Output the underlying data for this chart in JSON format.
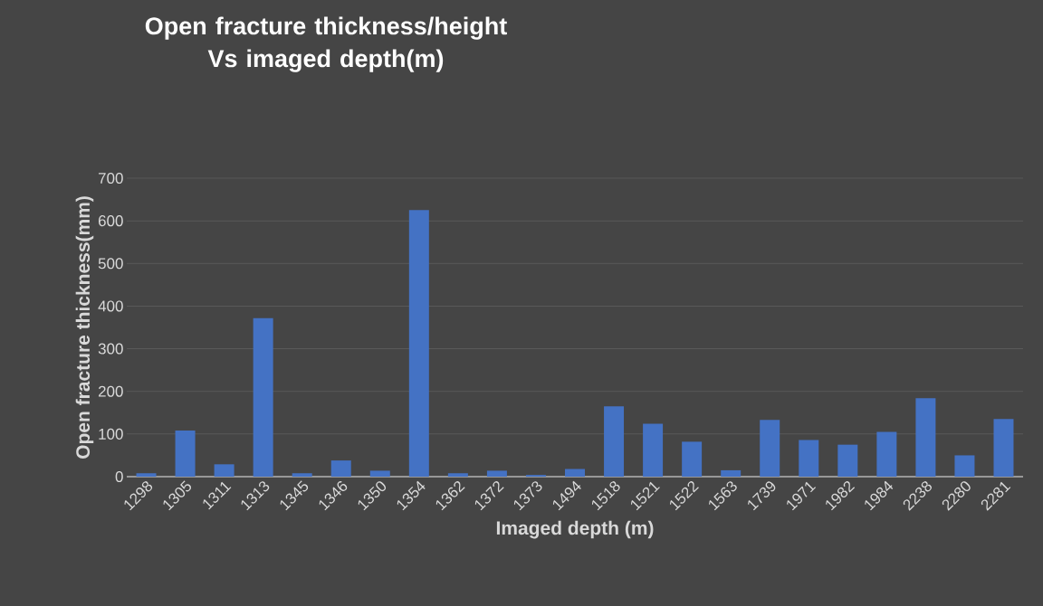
{
  "chart_data": {
    "type": "bar",
    "title": "Open fracture thickness/height Vs imaged depth(m)",
    "xlabel": "Imaged depth (m)",
    "ylabel": "Open fracture thickness(mm)",
    "categories": [
      "1298",
      "1305",
      "1311",
      "1313",
      "1345",
      "1346",
      "1350",
      "1354",
      "1362",
      "1372",
      "1373",
      "1494",
      "1518",
      "1521",
      "1522",
      "1563",
      "1739",
      "1971",
      "1982",
      "1984",
      "2238",
      "2280",
      "2281"
    ],
    "values": [
      8,
      108,
      29,
      372,
      8,
      38,
      14,
      625,
      8,
      14,
      4,
      18,
      165,
      124,
      82,
      15,
      133,
      86,
      75,
      105,
      184,
      50,
      135
    ],
    "color": "#4472c4",
    "ylim": [
      0,
      700
    ],
    "yticks": [
      0,
      100,
      200,
      300,
      400,
      500,
      600,
      700
    ],
    "grid": "y"
  }
}
